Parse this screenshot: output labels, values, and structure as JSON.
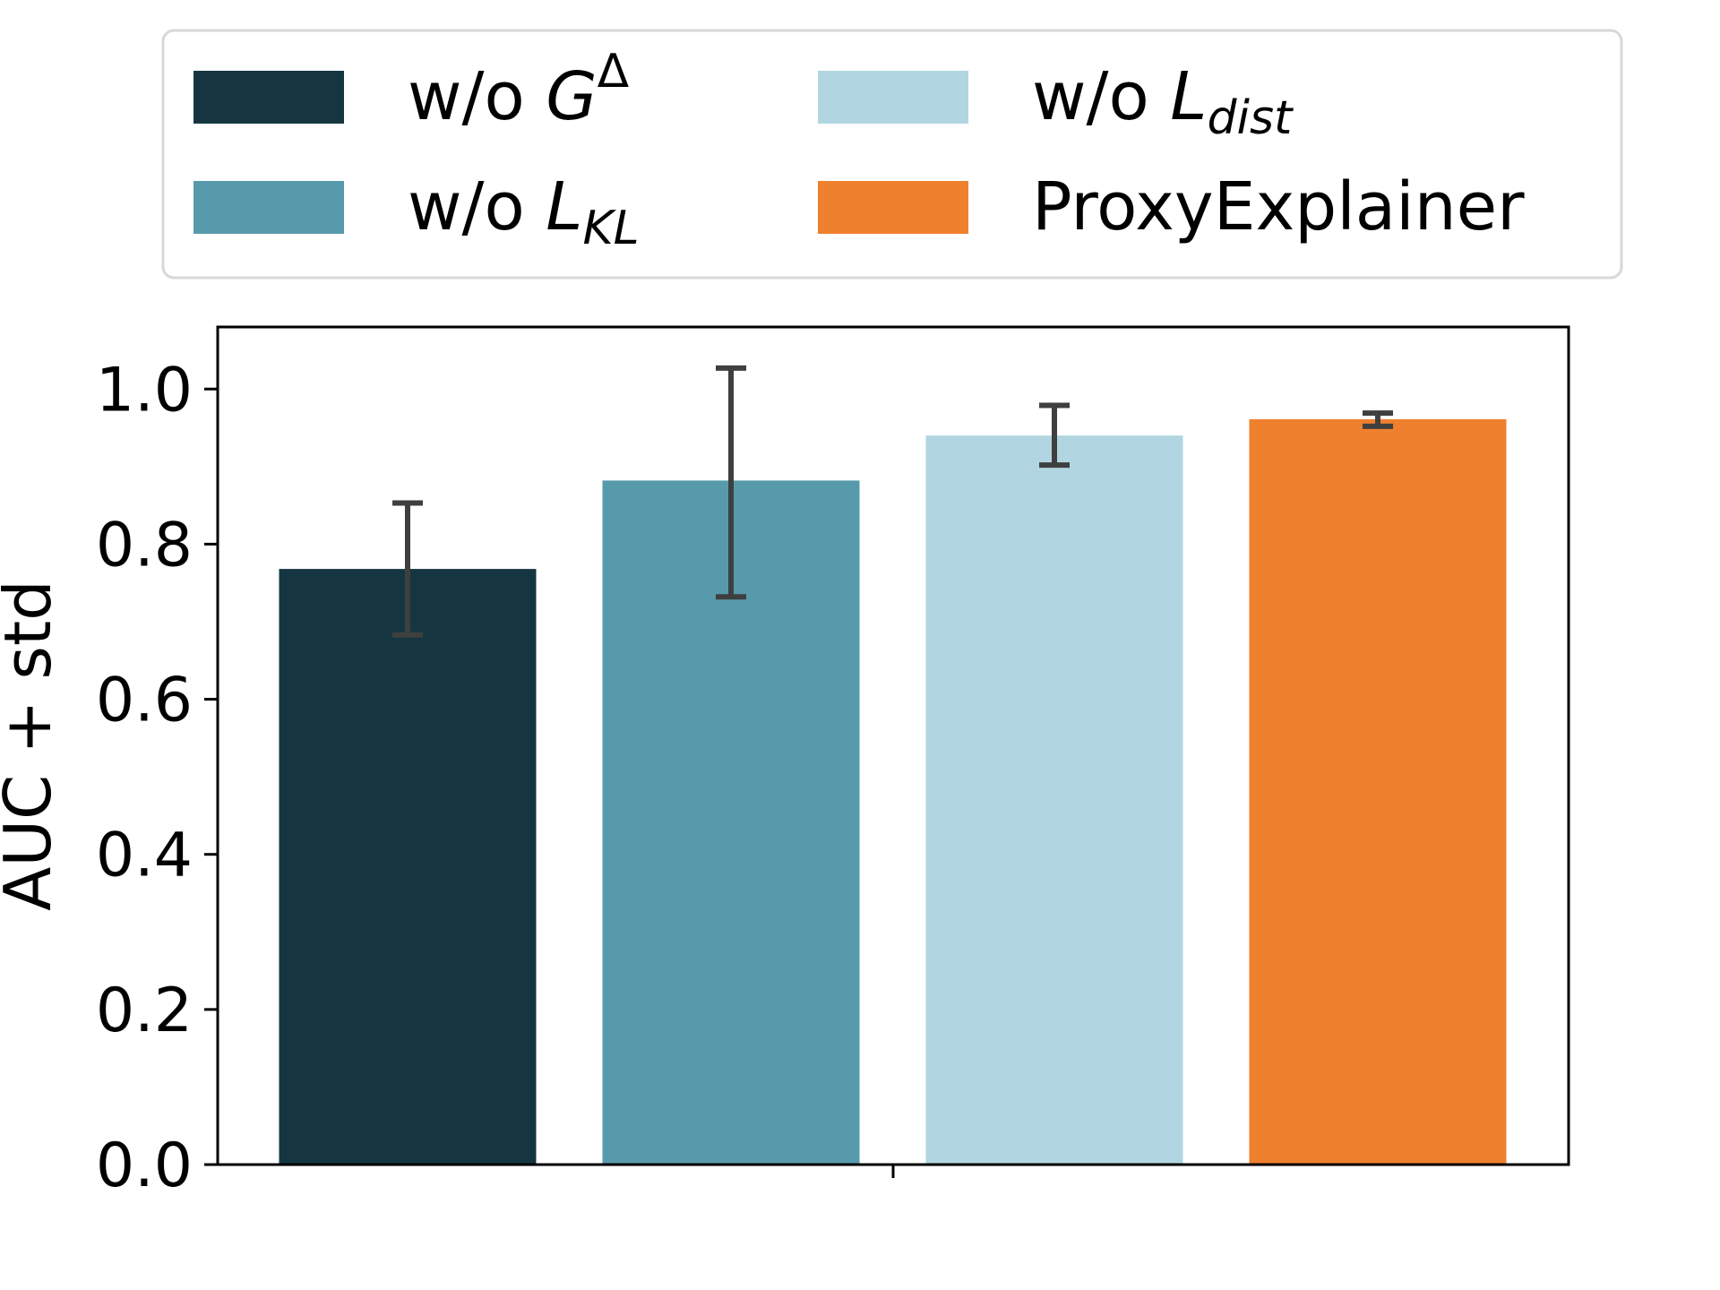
{
  "chart_data": {
    "type": "bar",
    "title": "",
    "xlabel": "",
    "ylabel": "AUC + std",
    "ylim": [
      0,
      1.08
    ],
    "yticks": [
      "0.0",
      "0.2",
      "0.4",
      "0.6",
      "0.8",
      "1.0"
    ],
    "ytick_values": [
      0.0,
      0.2,
      0.4,
      0.6,
      0.8,
      1.0
    ],
    "legend_position": "top",
    "series": [
      {
        "name": "w/o G^Δ",
        "label_plain": "w/o ",
        "label_math": "G",
        "label_sup": "Δ",
        "label_sub": "",
        "value": 0.768,
        "error_low": 0.683,
        "error_high": 0.853,
        "color": "#153641"
      },
      {
        "name": "w/o L_KL",
        "label_plain": "w/o ",
        "label_math": "L",
        "label_sup": "",
        "label_sub": "KL",
        "value": 0.882,
        "error_low": 0.732,
        "error_high": 1.027,
        "color": "#579aab"
      },
      {
        "name": "w/o L_dist",
        "label_plain": "w/o ",
        "label_math": "L",
        "label_sup": "",
        "label_sub": "dist",
        "value": 0.94,
        "error_low": 0.902,
        "error_high": 0.979,
        "color": "#b1d6e1"
      },
      {
        "name": "ProxyExplainer",
        "label_plain": "ProxyExplainer",
        "label_math": "",
        "label_sup": "",
        "label_sub": "",
        "value": 0.961,
        "error_low": 0.952,
        "error_high": 0.969,
        "color": "#ef802e"
      }
    ],
    "error_bar_color": "#3f3f3f"
  }
}
